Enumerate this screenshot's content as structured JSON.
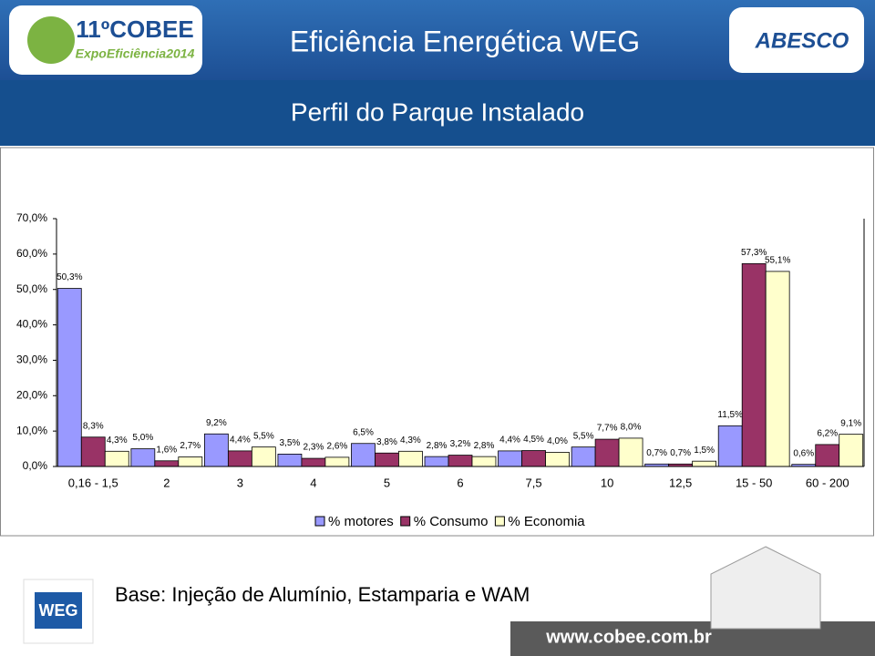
{
  "header": {
    "title": "Eficiência Energética WEG",
    "subtitle": "Perfil do Parque Instalado",
    "left_logo": "11ºCOBEE",
    "left_logo_sub": "ExpoEficiência2014",
    "right_logo": "ABESCO"
  },
  "chart_data": {
    "type": "bar",
    "categories": [
      "0,16 - 1,5",
      "2",
      "3",
      "4",
      "5",
      "6",
      "7,5",
      "10",
      "12,5",
      "15 - 50",
      "60 - 200"
    ],
    "series": [
      {
        "name": "% motores",
        "color": "#9999ff",
        "values": [
          50.3,
          5.0,
          9.2,
          3.5,
          6.5,
          2.8,
          4.4,
          5.5,
          0.7,
          11.5,
          0.6
        ],
        "value_labels": [
          "50,3%",
          "5,0%",
          "9,2%",
          "3,5%",
          "6,5%",
          "2,8%",
          "4,4%",
          "5,5%",
          "0,7%",
          "11,5%",
          "0,6%"
        ]
      },
      {
        "name": "% Consumo",
        "color": "#993366",
        "values": [
          8.3,
          1.6,
          4.4,
          2.3,
          3.8,
          3.2,
          4.5,
          7.7,
          0.7,
          57.3,
          6.2
        ],
        "value_labels": [
          "8,3%",
          "1,6%",
          "4,4%",
          "2,3%",
          "3,8%",
          "3,2%",
          "4,5%",
          "7,7%",
          "0,7%",
          "57,3%",
          "6,2%"
        ]
      },
      {
        "name": "% Economia",
        "color": "#ffffcc",
        "values": [
          4.3,
          2.7,
          5.5,
          2.6,
          4.3,
          2.8,
          4.0,
          8.0,
          1.5,
          55.1,
          9.1
        ],
        "value_labels": [
          "4,3%",
          "2,7%",
          "5,5%",
          "2,6%",
          "4,3%",
          "2,8%",
          "4,0%",
          "8,0%",
          "1,5%",
          "55,1%",
          "9,1%"
        ]
      }
    ],
    "ylim": [
      0,
      70
    ],
    "yticks": [
      {
        "value": 0,
        "label": "0,0%"
      },
      {
        "value": 10,
        "label": "10,0%"
      },
      {
        "value": 20,
        "label": "20,0%"
      },
      {
        "value": 30,
        "label": "30,0%"
      },
      {
        "value": 40,
        "label": "40,0%"
      },
      {
        "value": 50,
        "label": "50,0%"
      },
      {
        "value": 60,
        "label": "60,0%"
      },
      {
        "value": 70,
        "label": "70,0%"
      }
    ],
    "grid": false
  },
  "footer": {
    "logo": "WEG",
    "note": "Base: Injeção de Alumínio, Estamparia e WAM",
    "url": "www.cobee.com.br"
  }
}
